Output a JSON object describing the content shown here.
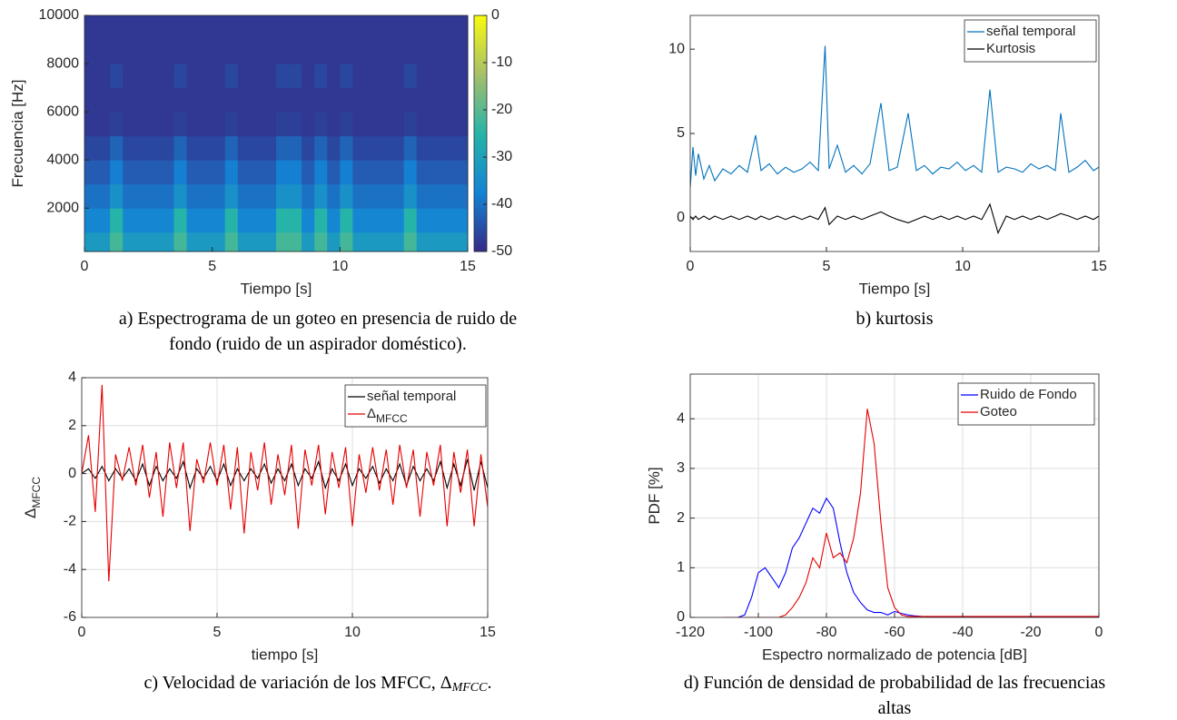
{
  "chart_data": [
    {
      "type": "heatmap",
      "xlabel": "Tiempo [s]",
      "ylabel": "Frecuencia [Hz]",
      "xlim": [
        0,
        15
      ],
      "ylim": [
        200,
        10000
      ],
      "xticks": [
        0,
        5,
        10,
        15
      ],
      "yticks": [
        2000,
        4000,
        6000,
        8000,
        10000
      ],
      "clim": [
        -50,
        0
      ],
      "cticks": [
        0,
        -10,
        -20,
        -30,
        -40,
        -50
      ],
      "colormap": "parula",
      "xbins": [
        0,
        0.5,
        1,
        1.5,
        2,
        2.5,
        3,
        3.5,
        4,
        4.5,
        5,
        5.5,
        6,
        6.5,
        7,
        7.5,
        8,
        8.5,
        9,
        9.5,
        10,
        10.5,
        11,
        11.5,
        12,
        12.5,
        13,
        13.5,
        14,
        14.5,
        15
      ],
      "ybins": [
        200,
        1000,
        2000,
        3000,
        4000,
        5000,
        6000,
        7000,
        8000,
        9000,
        10000
      ],
      "z": [
        [
          -32,
          -32,
          -22,
          -32,
          -32,
          -32,
          -32,
          -22,
          -32,
          -32,
          -32,
          -22,
          -32,
          -32,
          -32,
          -22,
          -22,
          -32,
          -22,
          -32,
          -22,
          -32,
          -32,
          -32,
          -32,
          -22,
          -32,
          -32,
          -32,
          -32
        ],
        [
          -37,
          -37,
          -25,
          -37,
          -37,
          -37,
          -37,
          -25,
          -37,
          -37,
          -37,
          -25,
          -37,
          -37,
          -37,
          -25,
          -25,
          -37,
          -25,
          -37,
          -25,
          -37,
          -37,
          -37,
          -37,
          -25,
          -37,
          -37,
          -37,
          -37
        ],
        [
          -40,
          -40,
          -34,
          -40,
          -40,
          -40,
          -40,
          -34,
          -40,
          -40,
          -40,
          -34,
          -40,
          -40,
          -40,
          -34,
          -34,
          -40,
          -34,
          -40,
          -34,
          -40,
          -40,
          -40,
          -40,
          -34,
          -40,
          -40,
          -40,
          -40
        ],
        [
          -43,
          -43,
          -38,
          -43,
          -43,
          -43,
          -43,
          -38,
          -43,
          -43,
          -43,
          -38,
          -43,
          -43,
          -43,
          -38,
          -38,
          -43,
          -38,
          -43,
          -38,
          -43,
          -43,
          -43,
          -43,
          -38,
          -43,
          -43,
          -43,
          -43
        ],
        [
          -46,
          -46,
          -42,
          -46,
          -46,
          -46,
          -46,
          -42,
          -46,
          -46,
          -46,
          -42,
          -46,
          -46,
          -46,
          -42,
          -42,
          -46,
          -42,
          -46,
          -42,
          -46,
          -46,
          -46,
          -46,
          -42,
          -46,
          -46,
          -46,
          -46
        ],
        [
          -48,
          -48,
          -47,
          -48,
          -48,
          -48,
          -48,
          -47,
          -48,
          -48,
          -48,
          -47,
          -48,
          -48,
          -48,
          -47,
          -47,
          -48,
          -47,
          -48,
          -47,
          -48,
          -48,
          -48,
          -48,
          -47,
          -48,
          -48,
          -48,
          -48
        ],
        [
          -48,
          -48,
          -48,
          -48,
          -48,
          -48,
          -48,
          -48,
          -48,
          -48,
          -48,
          -48,
          -48,
          -48,
          -48,
          -48,
          -48,
          -48,
          -48,
          -48,
          -48,
          -48,
          -48,
          -48,
          -48,
          -48,
          -48,
          -48,
          -48,
          -48
        ],
        [
          -48,
          -48,
          -46,
          -48,
          -48,
          -48,
          -48,
          -46,
          -48,
          -48,
          -48,
          -46,
          -48,
          -48,
          -48,
          -46,
          -46,
          -48,
          -46,
          -48,
          -46,
          -48,
          -48,
          -48,
          -48,
          -46,
          -48,
          -48,
          -48,
          -48
        ],
        [
          -48,
          -48,
          -48,
          -48,
          -48,
          -48,
          -48,
          -48,
          -48,
          -48,
          -48,
          -48,
          -48,
          -48,
          -48,
          -48,
          -48,
          -48,
          -48,
          -48,
          -48,
          -48,
          -48,
          -48,
          -48,
          -48,
          -48,
          -48,
          -48,
          -48
        ],
        [
          -48,
          -48,
          -48,
          -48,
          -48,
          -48,
          -48,
          -48,
          -48,
          -48,
          -48,
          -48,
          -48,
          -48,
          -48,
          -48,
          -48,
          -48,
          -48,
          -48,
          -48,
          -48,
          -48,
          -48,
          -48,
          -48,
          -48,
          -48,
          -48,
          -48
        ]
      ],
      "caption": [
        "a) Espectrograma de un goteo en presencia de ruido de",
        "fondo (ruido de un aspirador doméstico)."
      ]
    },
    {
      "type": "line",
      "xlabel": "Tiempo [s]",
      "xlim": [
        0,
        15
      ],
      "ylim": [
        -2,
        12
      ],
      "xticks": [
        0,
        5,
        10,
        15
      ],
      "yticks": [
        0,
        5,
        10
      ],
      "grid": false,
      "x": [
        0,
        0.1,
        0.2,
        0.3,
        0.5,
        0.7,
        0.9,
        1.2,
        1.5,
        1.8,
        2.1,
        2.4,
        2.6,
        2.9,
        3.2,
        3.5,
        3.8,
        4.1,
        4.4,
        4.7,
        4.95,
        5.1,
        5.4,
        5.7,
        6.0,
        6.3,
        6.6,
        7.0,
        7.3,
        7.6,
        8.0,
        8.3,
        8.6,
        8.9,
        9.2,
        9.5,
        9.8,
        10.1,
        10.4,
        10.7,
        11.0,
        11.3,
        11.6,
        11.9,
        12.2,
        12.5,
        12.8,
        13.1,
        13.4,
        13.6,
        13.9,
        14.2,
        14.5,
        14.8,
        15
      ],
      "series": [
        {
          "name": "señal temporal",
          "color": "#0072bd",
          "values": [
            1.8,
            4.2,
            2.5,
            3.8,
            2.3,
            3.1,
            2.2,
            2.9,
            2.6,
            3.1,
            2.7,
            4.9,
            2.8,
            3.2,
            2.6,
            3.0,
            2.7,
            2.9,
            3.3,
            2.8,
            10.2,
            2.9,
            4.3,
            2.7,
            3.1,
            2.6,
            3.2,
            6.8,
            2.8,
            3.0,
            6.2,
            2.8,
            3.1,
            2.6,
            3.0,
            2.9,
            3.3,
            2.8,
            3.1,
            2.7,
            7.6,
            2.7,
            3.0,
            2.9,
            2.7,
            3.2,
            2.9,
            3.1,
            2.8,
            6.2,
            2.7,
            3.0,
            3.4,
            2.8,
            3.0
          ]
        },
        {
          "name": "Kurtosis",
          "color": "#000000",
          "values": [
            0.1,
            -0.1,
            0.1,
            -0.1,
            0.1,
            -0.1,
            0.1,
            -0.1,
            0.1,
            -0.1,
            0.1,
            -0.1,
            0.1,
            -0.1,
            0.1,
            -0.1,
            0.1,
            -0.1,
            0.1,
            -0.1,
            0.6,
            -0.4,
            0.1,
            -0.1,
            0.1,
            -0.1,
            0.1,
            0.35,
            0.1,
            -0.1,
            -0.3,
            -0.1,
            0.1,
            -0.1,
            0.1,
            -0.1,
            0.1,
            -0.1,
            0.1,
            -0.1,
            0.8,
            -0.9,
            0.1,
            -0.1,
            0.1,
            -0.1,
            0.1,
            -0.1,
            0.1,
            0.25,
            0.1,
            -0.1,
            0.1,
            -0.1,
            0.1
          ]
        }
      ],
      "caption": [
        "b) kurtosis"
      ]
    },
    {
      "type": "line",
      "xlabel": "tiempo [s]",
      "ylabel": "Δ",
      "ylabel_sub": "MFCC",
      "xlim": [
        0,
        15
      ],
      "ylim": [
        -6,
        4
      ],
      "xticks": [
        0,
        5,
        10,
        15
      ],
      "yticks": [
        -6,
        -4,
        -2,
        0,
        2,
        4
      ],
      "grid": true,
      "x": [
        0,
        0.25,
        0.5,
        0.75,
        1,
        1.25,
        1.5,
        1.75,
        2,
        2.25,
        2.5,
        2.75,
        3,
        3.25,
        3.5,
        3.75,
        4,
        4.25,
        4.5,
        4.75,
        5,
        5.25,
        5.5,
        5.75,
        6,
        6.25,
        6.5,
        6.75,
        7,
        7.25,
        7.5,
        7.75,
        8,
        8.25,
        8.5,
        8.75,
        9,
        9.25,
        9.5,
        9.75,
        10,
        10.25,
        10.5,
        10.75,
        11,
        11.25,
        11.5,
        11.75,
        12,
        12.25,
        12.5,
        12.75,
        13,
        13.25,
        13.5,
        13.75,
        14,
        14.25,
        14.5,
        14.75,
        15
      ],
      "series": [
        {
          "name": "señal temporal",
          "color": "#000000",
          "values": [
            0,
            0.2,
            -0.2,
            0.3,
            -0.3,
            0.2,
            -0.2,
            0.2,
            -0.3,
            0.4,
            -0.5,
            0.3,
            -0.3,
            0.2,
            -0.2,
            0.5,
            -0.6,
            0.2,
            -0.2,
            0.3,
            -0.3,
            0.4,
            -0.5,
            0.2,
            -0.3,
            0.2,
            -0.2,
            0.4,
            -0.4,
            0.2,
            -0.3,
            0.4,
            -0.5,
            0.2,
            -0.2,
            0.5,
            -0.6,
            0.2,
            -0.3,
            0.4,
            -0.5,
            0.2,
            -0.2,
            0.3,
            -0.4,
            0.2,
            -0.3,
            0.4,
            -0.5,
            0.3,
            -0.3,
            0.2,
            -0.3,
            0.5,
            -0.6,
            0.4,
            -0.5,
            0.6,
            -0.7,
            0.5,
            -0.6
          ]
        },
        {
          "name": "Δ",
          "name_sub": "MFCC",
          "color": "#e60000",
          "values": [
            0,
            1.6,
            -1.6,
            3.7,
            -4.5,
            0.8,
            -0.3,
            1.1,
            -0.5,
            1.2,
            -1.0,
            0.9,
            -1.8,
            1.3,
            -0.6,
            1.3,
            -2.4,
            0.6,
            -0.4,
            1.3,
            -0.5,
            1.2,
            -1.5,
            1.1,
            -2.5,
            0.9,
            -0.7,
            1.3,
            -1.3,
            0.8,
            -0.9,
            1.2,
            -2.3,
            1.0,
            -0.5,
            1.2,
            -1.7,
            0.9,
            -0.6,
            1.1,
            -2.2,
            0.8,
            -0.8,
            1.1,
            -0.7,
            1.0,
            -1.3,
            1.2,
            -0.6,
            1.0,
            -1.8,
            0.9,
            -0.5,
            1.2,
            -2.2,
            0.9,
            -0.8,
            1.0,
            -2.2,
            0.8,
            -1.4
          ]
        }
      ],
      "caption": [
        "c) Velocidad de variación de los MFCC,  Δ"
      ],
      "caption_sub": "MFCC",
      "caption_end": "."
    },
    {
      "type": "line",
      "xlabel": "Espectro normalizado de potencia [dB]",
      "ylabel": "PDF [%]",
      "xlim": [
        -120,
        0
      ],
      "ylim": [
        0,
        4.9
      ],
      "xticks": [
        -120,
        -100,
        -80,
        -60,
        -40,
        -20,
        0
      ],
      "yticks": [
        0,
        1,
        2,
        3,
        4
      ],
      "grid": true,
      "x": [
        -110,
        -108,
        -106,
        -104,
        -102,
        -100,
        -98,
        -96,
        -94,
        -92,
        -90,
        -88,
        -86,
        -84,
        -82,
        -80,
        -78,
        -76,
        -74,
        -72,
        -70,
        -68,
        -66,
        -64,
        -62,
        -60,
        -58,
        -56,
        -54,
        -52,
        -50,
        -48,
        -46,
        -44,
        -42,
        -40,
        -38,
        -36,
        -34,
        -32,
        -30,
        -28,
        -26,
        -24,
        -22,
        -20,
        -18,
        -16,
        -14,
        -12,
        -10,
        -8,
        -6,
        -4,
        -2,
        0
      ],
      "series": [
        {
          "name": "Ruido de Fondo",
          "color": "#0000ff",
          "values": [
            0,
            0,
            0,
            0.05,
            0.4,
            0.9,
            1.0,
            0.8,
            0.6,
            0.9,
            1.4,
            1.6,
            1.9,
            2.2,
            2.1,
            2.4,
            2.2,
            1.5,
            0.9,
            0.5,
            0.3,
            0.15,
            0.1,
            0.1,
            0.05,
            0.12,
            0.08,
            0.05,
            0.03,
            0.02,
            0,
            0,
            0,
            0,
            0,
            0,
            0,
            0,
            0,
            0,
            0,
            0,
            0,
            0,
            0,
            0,
            0,
            0,
            0,
            0,
            0,
            0,
            0,
            0,
            0,
            0
          ]
        },
        {
          "name": "Goteo",
          "color": "#e60000",
          "values": [
            0,
            0,
            0,
            0,
            0,
            0,
            0,
            0,
            0,
            0.05,
            0.2,
            0.4,
            0.7,
            1.2,
            1.0,
            1.7,
            1.2,
            1.3,
            1.1,
            1.6,
            2.5,
            4.2,
            3.5,
            1.9,
            0.6,
            0.2,
            0.05,
            0.02,
            0.02,
            0.02,
            0.02,
            0.02,
            0.02,
            0.02,
            0.02,
            0.02,
            0.02,
            0.02,
            0.02,
            0.02,
            0.02,
            0.02,
            0.02,
            0.02,
            0.02,
            0.02,
            0.02,
            0.02,
            0.02,
            0.02,
            0.02,
            0.02,
            0.02,
            0.02,
            0.02,
            0.02
          ]
        }
      ],
      "caption": [
        "d) Función de densidad de probabilidad de las frecuencias",
        "altas"
      ]
    }
  ]
}
